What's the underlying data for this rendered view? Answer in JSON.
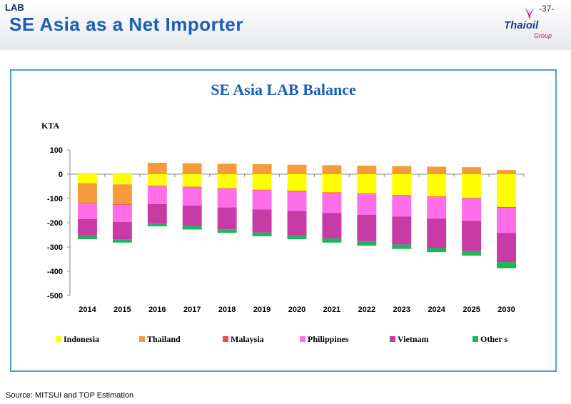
{
  "header": {
    "section_tag": "LAB",
    "title": "SE Asia as a Net Importer",
    "page_number": "-37-",
    "logo": {
      "name": "Thaioil",
      "sub": "Group"
    }
  },
  "footer": {
    "source": "Source: MITSUI and TOP Estimation"
  },
  "colors": {
    "Indonesia": "#ffff00",
    "Thailand": "#f79a3c",
    "Malaysia": "#f04a55",
    "Philippines": "#ff6ee8",
    "Vietnam": "#c83aa6",
    "Other": "#1fb35a",
    "frame": "#4aa3d7",
    "title": "#1b5fb5"
  },
  "chart_data": {
    "type": "bar",
    "stacked": true,
    "title": "SE Asia LAB Balance",
    "ylabel": "KTA",
    "xlabel": "",
    "ylim": [
      -500,
      100
    ],
    "yticks": [
      100,
      0,
      -100,
      -200,
      -300,
      -400,
      -500
    ],
    "grid": false,
    "legend": "bottom",
    "legend_labels": [
      "Indonesia",
      "Thailand",
      "Malaysia",
      "Philippines",
      "Vietnam",
      "Other s"
    ],
    "categories": [
      "2014",
      "2015",
      "2016",
      "2017",
      "2018",
      "2019",
      "2020",
      "2021",
      "2022",
      "2023",
      "2024",
      "2025",
      "2030"
    ],
    "series": [
      {
        "name": "Indonesia",
        "values": [
          -37,
          -42,
          -48,
          -52,
          -58,
          -64,
          -69,
          -75,
          -80,
          -86,
          -92,
          -98,
          -135
        ]
      },
      {
        "name": "Thailand",
        "values": [
          -81,
          -82,
          47,
          45,
          43,
          41,
          39,
          37,
          35,
          33,
          31,
          29,
          17
        ]
      },
      {
        "name": "Malaysia",
        "values": [
          -3,
          -3,
          -3,
          -3,
          -3,
          -3,
          -3,
          -3,
          -3,
          -3,
          -3,
          -3,
          -4
        ]
      },
      {
        "name": "Philippines",
        "values": [
          -64,
          -70,
          -72,
          -74,
          -76,
          -78,
          -80,
          -82,
          -84,
          -86,
          -88,
          -91,
          -103
        ]
      },
      {
        "name": "Vietnam",
        "values": [
          -70,
          -73,
          -79,
          -85,
          -90,
          -95,
          -100,
          -105,
          -110,
          -115,
          -120,
          -125,
          -120
        ]
      },
      {
        "name": "Other",
        "values": [
          -13,
          -12,
          -13,
          -14,
          -15,
          -16,
          -16,
          -17,
          -18,
          -18,
          -18,
          -19,
          -26
        ]
      }
    ]
  }
}
